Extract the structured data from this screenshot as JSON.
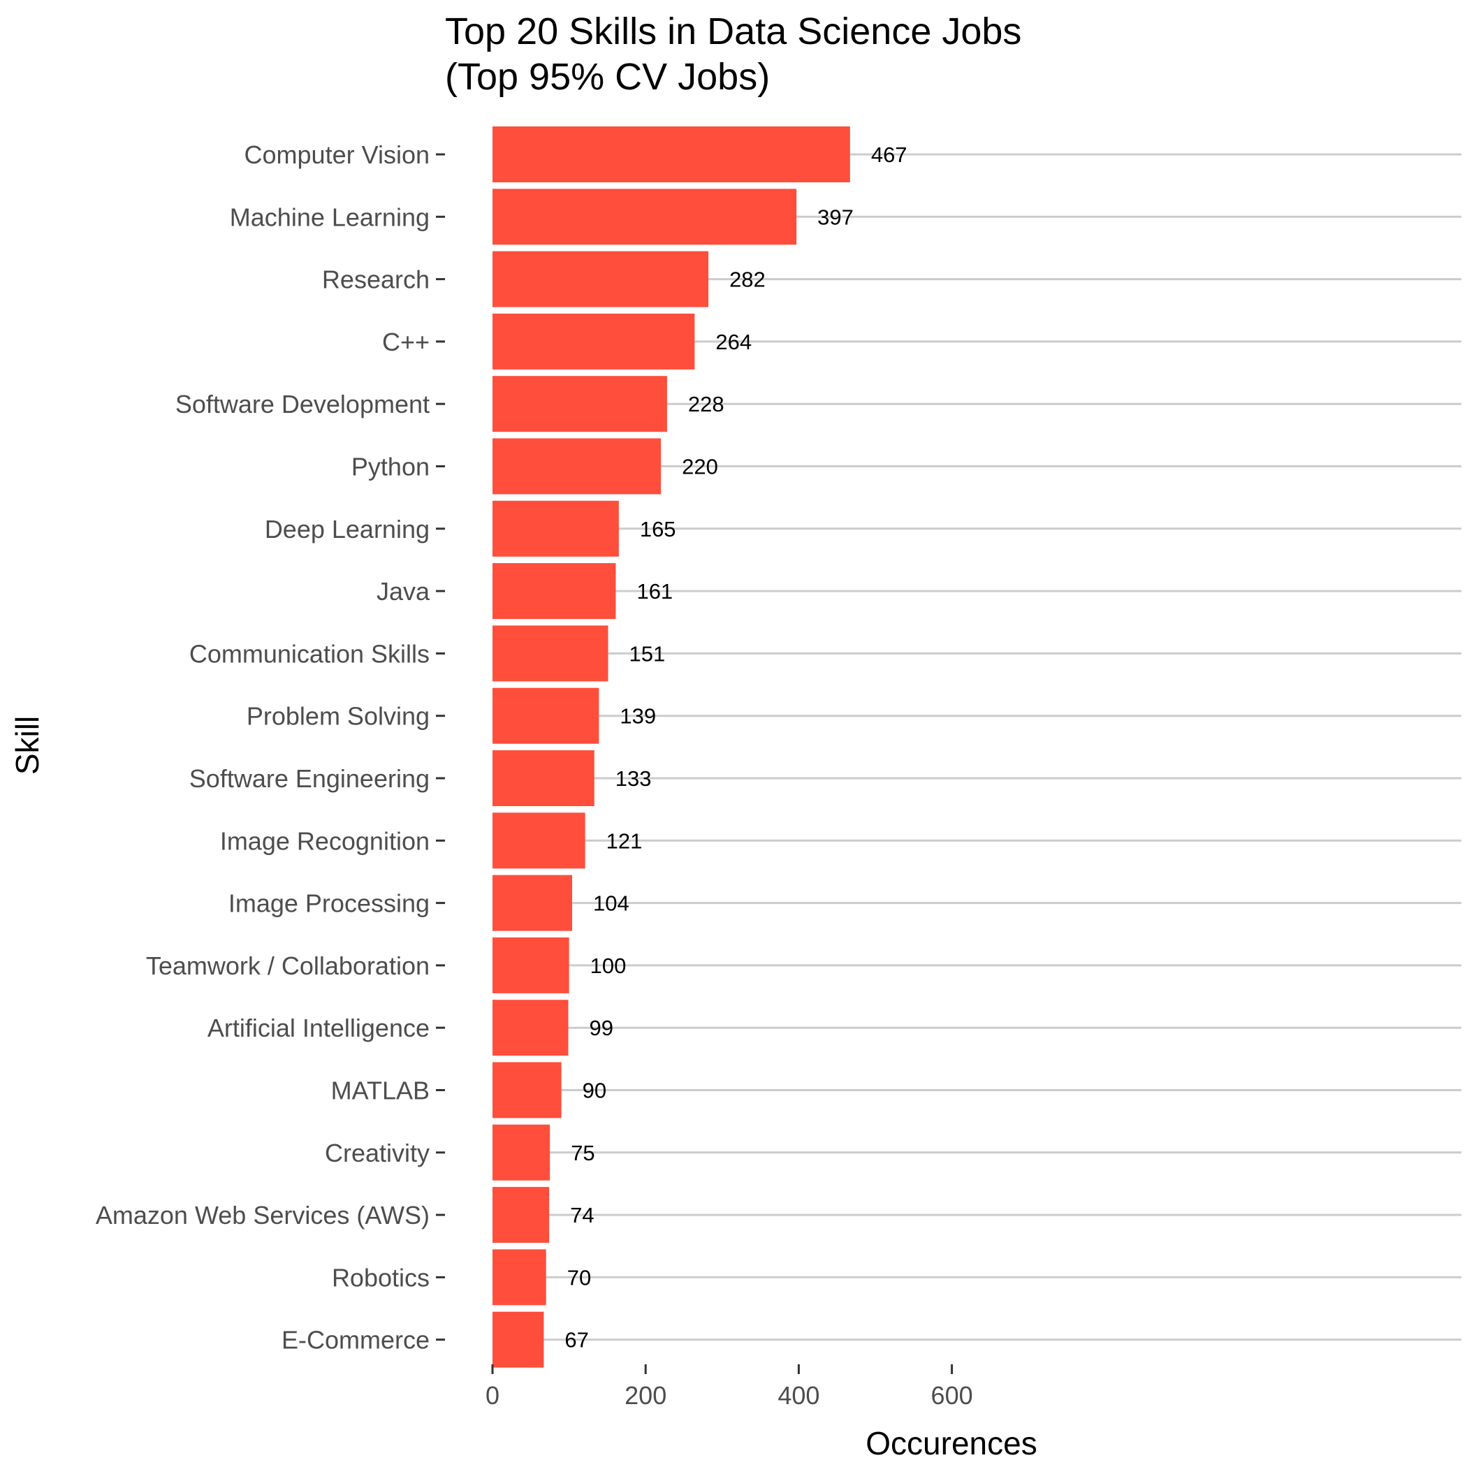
{
  "chart_data": {
    "type": "bar",
    "orientation": "horizontal",
    "title_line1": "Top 20 Skills in Data Science Jobs",
    "title_line2": "(Top 95% CV Jobs)",
    "xlabel": "Occurences",
    "ylabel": "Skill",
    "xlim": [
      0,
      600
    ],
    "xticks": [
      0,
      200,
      400,
      600
    ],
    "grid": "horizontal lines at each category",
    "bar_color": "#FF4E3C",
    "grid_color": "#CCCCCC",
    "categories": [
      "Computer Vision",
      "Machine Learning",
      "Research",
      "C++",
      "Software Development",
      "Python",
      "Deep Learning",
      "Java",
      "Communication Skills",
      "Problem Solving",
      "Software Engineering",
      "Image Recognition",
      "Image Processing",
      "Teamwork / Collaboration",
      "Artificial Intelligence",
      "MATLAB",
      "Creativity",
      "Amazon Web Services (AWS)",
      "Robotics",
      "E-Commerce"
    ],
    "values": [
      467,
      397,
      282,
      264,
      228,
      220,
      165,
      161,
      151,
      139,
      133,
      121,
      104,
      100,
      99,
      90,
      75,
      74,
      70,
      67
    ]
  }
}
